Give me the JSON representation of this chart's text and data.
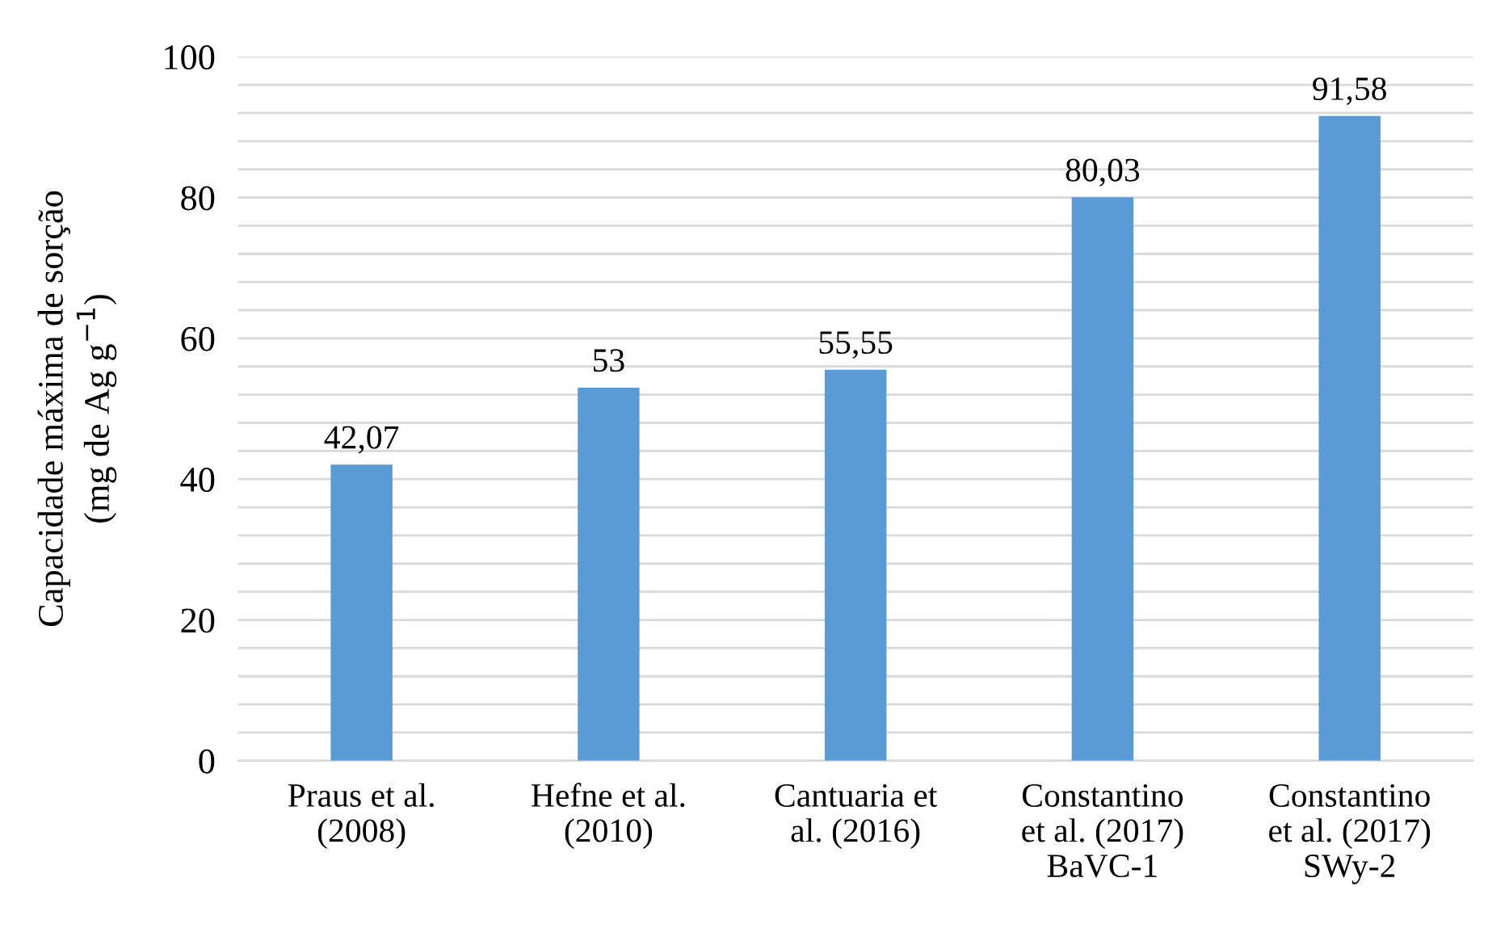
{
  "chart_data": {
    "type": "bar",
    "ylabel": "Capacidade máxima de sorção\n(mg de Ag g$^{−1}$)",
    "categories": [
      "Praus et al.\n(2008)",
      "Hefne et al.\n(2010)",
      "Cantuaria et\nal. (2016)",
      "Constantino\net al. (2017)\nBaVC-1",
      "Constantino\net al. (2017)\nSWy-2"
    ],
    "values": [
      42.07,
      53,
      55.55,
      80.03,
      91.58
    ],
    "value_labels": [
      "42,07",
      "53",
      "55,55",
      "80,03",
      "91,58"
    ],
    "color": "#5b9bd5",
    "ylim": [
      0,
      100
    ],
    "yticks": [
      0,
      {
        "value": 4,
        "label": null
      },
      {
        "value": 8,
        "label": null
      },
      {
        "value": 12,
        "label": null
      },
      {
        "value": 16,
        "label": null
      },
      20,
      {
        "value": 24,
        "label": null
      },
      {
        "value": 28,
        "label": null
      },
      {
        "value": 32,
        "label": null
      },
      {
        "value": 36,
        "label": null
      },
      40,
      {
        "value": 44,
        "label": null
      },
      {
        "value": 48,
        "label": null
      },
      {
        "value": 52,
        "label": null
      },
      {
        "value": 56,
        "label": null
      },
      60,
      {
        "value": 64,
        "label": null
      },
      {
        "value": 68,
        "label": null
      },
      {
        "value": 72,
        "label": null
      },
      {
        "value": 76,
        "label": null
      },
      80,
      {
        "value": 84,
        "label": null
      },
      {
        "value": 88,
        "label": null
      },
      {
        "value": 92,
        "label": null
      },
      {
        "value": 96,
        "label": null
      },
      100
    ],
    "grid": "y"
  }
}
